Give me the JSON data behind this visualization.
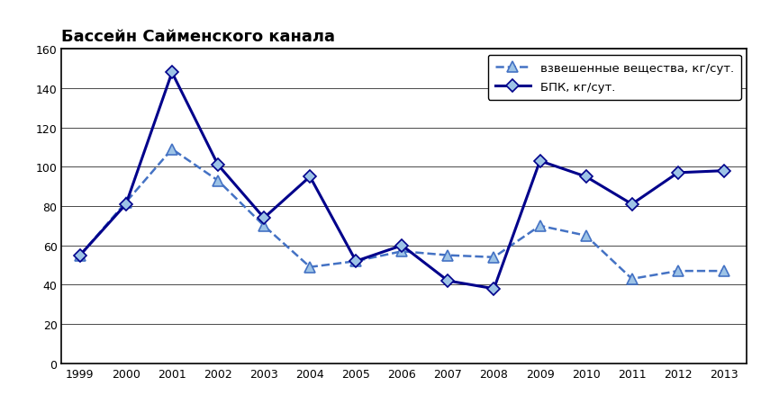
{
  "title": "Бассейн Сайменского канала",
  "years": [
    1999,
    2000,
    2001,
    2002,
    2003,
    2004,
    2005,
    2006,
    2007,
    2008,
    2009,
    2010,
    2011,
    2012,
    2013
  ],
  "suspended": [
    55,
    82,
    109,
    93,
    70,
    49,
    52,
    57,
    55,
    54,
    70,
    65,
    43,
    47,
    47
  ],
  "bod": [
    55,
    81,
    148,
    101,
    74,
    95,
    52,
    60,
    42,
    38,
    103,
    95,
    81,
    97,
    98
  ],
  "suspended_label": "взвешенные вещества, кг/сут.",
  "bod_label": "БПК, кг/сут.",
  "suspended_line_color": "#4472C4",
  "suspended_marker_face": "#9DC3E6",
  "suspended_marker_edge": "#4472C4",
  "bod_line_color": "#00008B",
  "bod_marker_face": "#9DC3E6",
  "bod_marker_edge": "#00008B",
  "ylim": [
    0,
    160
  ],
  "yticks": [
    0,
    20,
    40,
    60,
    80,
    100,
    120,
    140,
    160
  ],
  "background_color": "#ffffff"
}
